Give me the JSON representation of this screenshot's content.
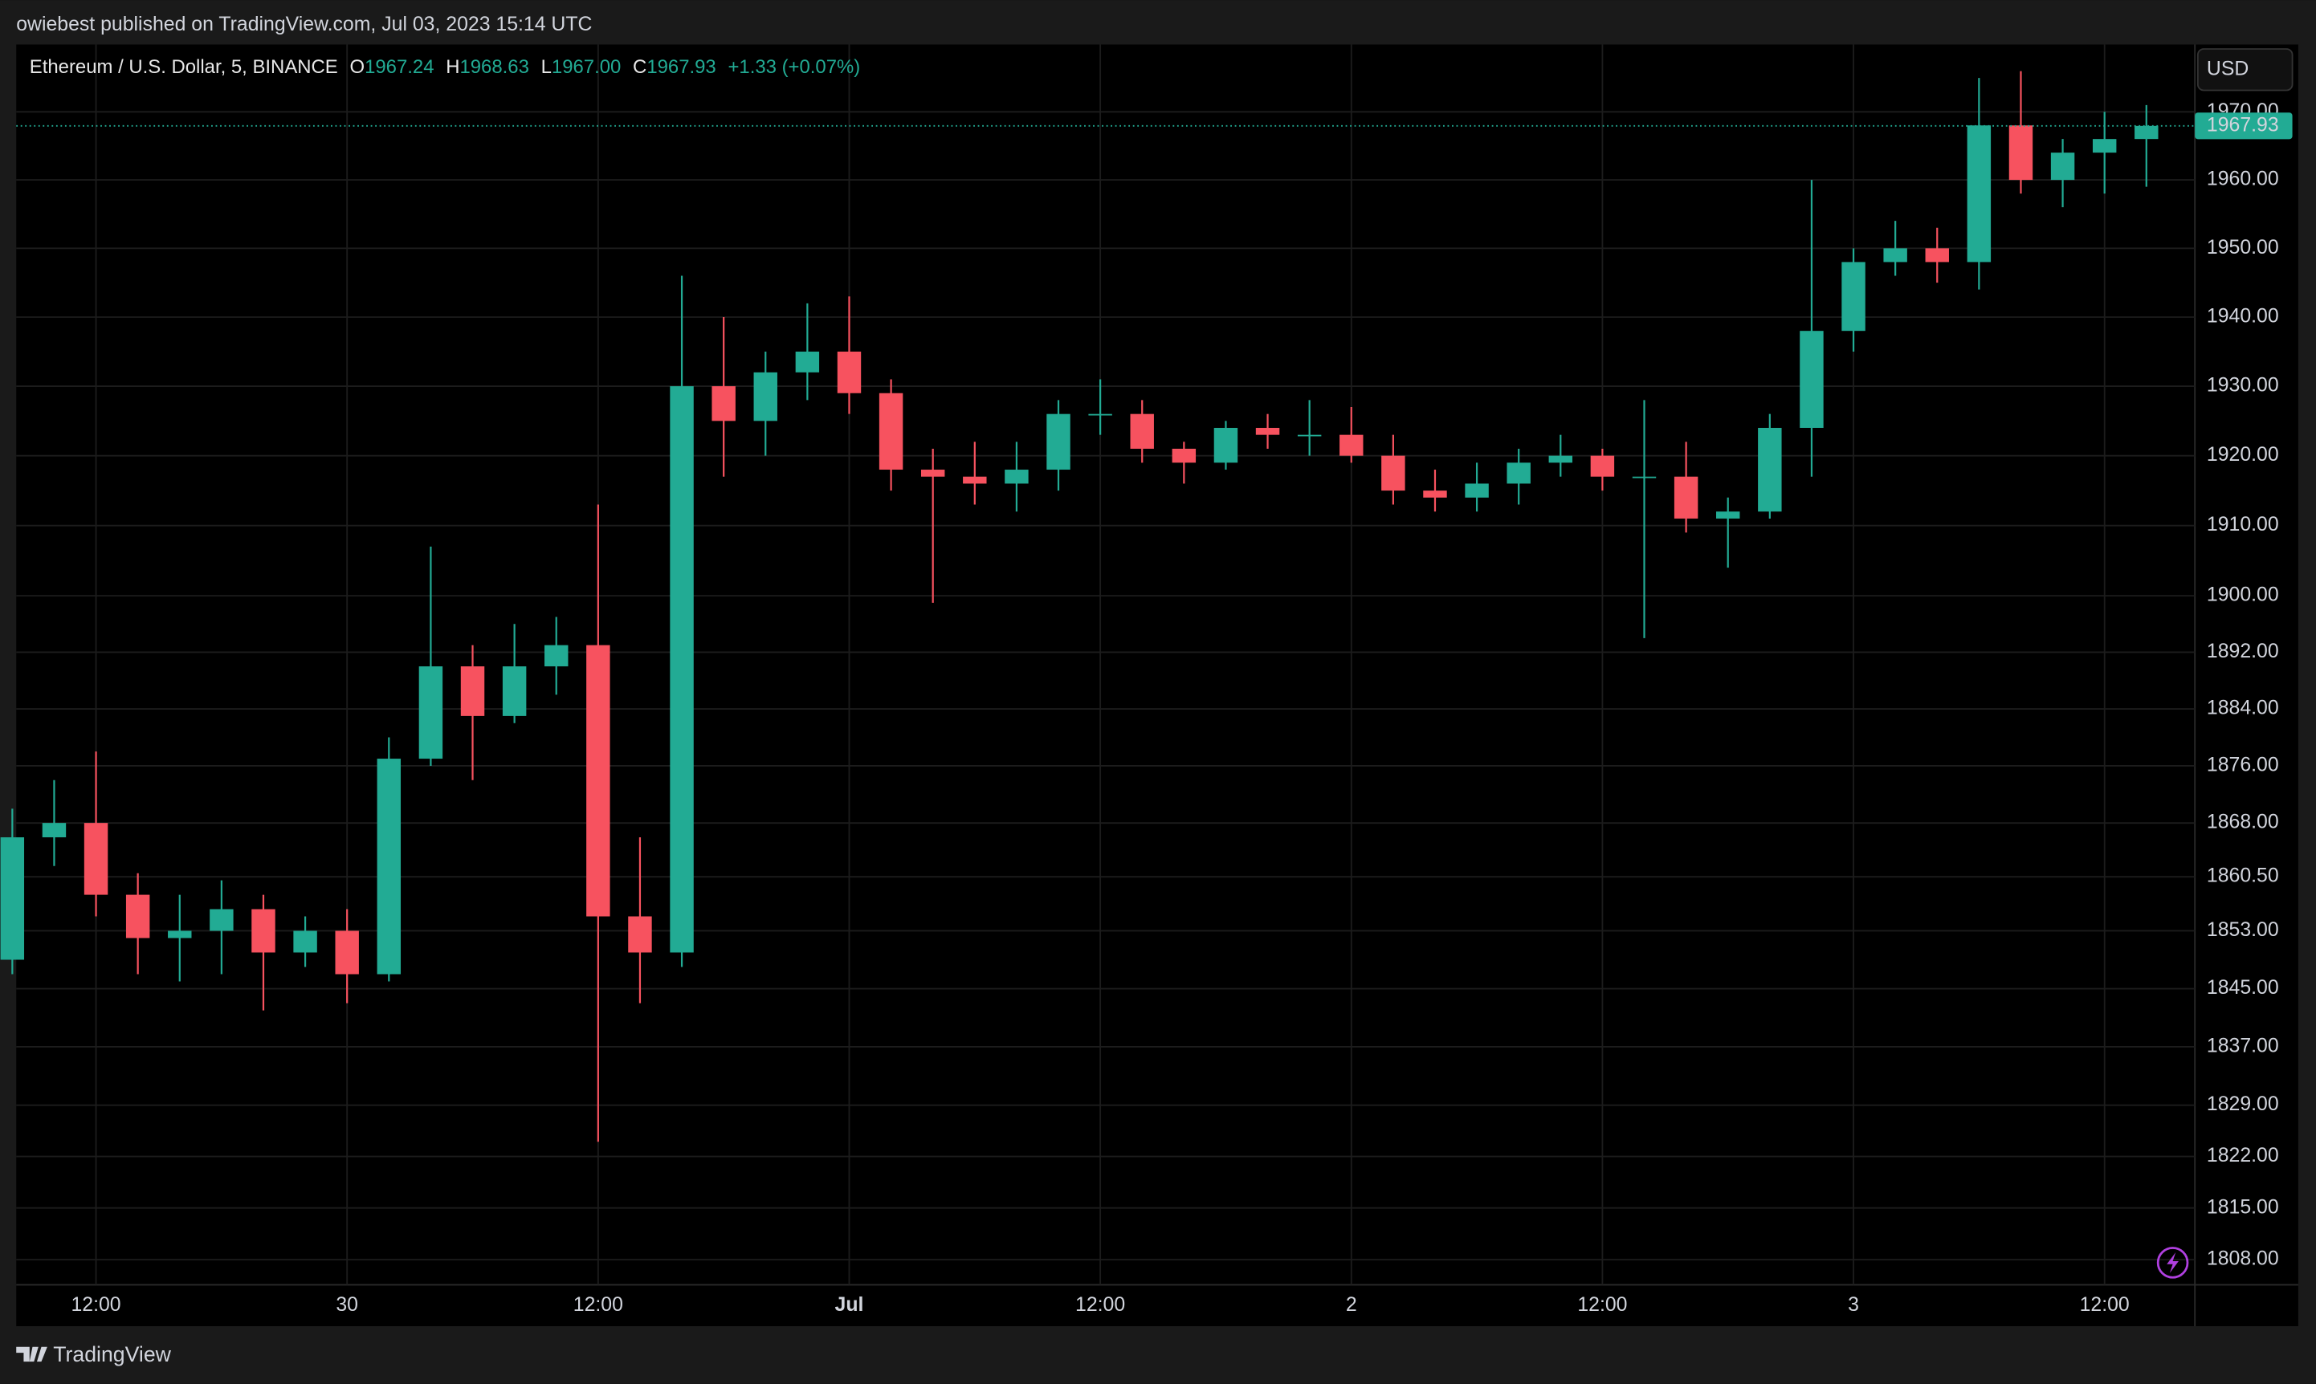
{
  "header": {
    "publisher": "owiebest published on TradingView.com, Jul 03, 2023 15:14 UTC"
  },
  "footer": {
    "brand": "TradingView"
  },
  "chart_data": {
    "type": "candlestick",
    "symbol": "Ethereum / U.S. Dollar, 5, BINANCE",
    "ohlc_legend": {
      "open_label": "O",
      "open": "1967.24",
      "high_label": "H",
      "high": "1968.63",
      "low_label": "L",
      "low": "1967.00",
      "close_label": "C",
      "close": "1967.93",
      "change": "+1.33 (+0.07%)"
    },
    "currency": "USD",
    "last_price": 1967.93,
    "up_color": "#22ab94",
    "down_color": "#f7525f",
    "log": true,
    "grid": true,
    "categories": [
      null,
      null,
      "12:00",
      null,
      null,
      null,
      null,
      null,
      "30",
      null,
      null,
      null,
      null,
      null,
      "12:00",
      null,
      null,
      null,
      null,
      null,
      "Jul",
      null,
      null,
      null,
      null,
      null,
      "12:00",
      null,
      null,
      null,
      null,
      null,
      "2",
      null,
      null,
      null,
      null,
      null,
      "12:00",
      null,
      null,
      null,
      null,
      null,
      "3",
      null,
      null,
      null,
      null,
      null,
      "12:00",
      null
    ],
    "open": [
      1849,
      1866,
      1868,
      1858,
      1852,
      1853,
      1856,
      1850,
      1853,
      1847,
      1877,
      1890,
      1883,
      1890,
      1893,
      1855,
      1850,
      1930,
      1925,
      1932,
      1935,
      1929,
      1918,
      1917,
      1916,
      1918,
      1926,
      1926,
      1921,
      1919,
      1924,
      1923,
      1923,
      1920,
      1915,
      1914,
      1916,
      1919,
      1920,
      1917,
      1917,
      1911,
      1912,
      1924,
      1938,
      1948,
      1950,
      1948,
      1968,
      1960,
      1964,
      1966
    ],
    "high": [
      1870,
      1874,
      1878,
      1861,
      1858,
      1860,
      1858,
      1855,
      1856,
      1880,
      1907,
      1893,
      1896,
      1897,
      1913,
      1866,
      1946,
      1940,
      1935,
      1942,
      1943,
      1931,
      1921,
      1922,
      1922,
      1928,
      1931,
      1928,
      1922,
      1925,
      1926,
      1928,
      1927,
      1923,
      1918,
      1919,
      1921,
      1923,
      1921,
      1928,
      1922,
      1914,
      1926,
      1960,
      1950,
      1954,
      1953,
      1975,
      1976,
      1966,
      1970,
      1971
    ],
    "low": [
      1847,
      1862,
      1855,
      1847,
      1846,
      1847,
      1842,
      1848,
      1843,
      1846,
      1876,
      1874,
      1882,
      1886,
      1824,
      1843,
      1848,
      1917,
      1920,
      1928,
      1926,
      1915,
      1899,
      1913,
      1912,
      1915,
      1923,
      1919,
      1916,
      1918,
      1921,
      1920,
      1919,
      1913,
      1912,
      1912,
      1913,
      1917,
      1915,
      1894,
      1909,
      1904,
      1911,
      1917,
      1935,
      1946,
      1945,
      1944,
      1958,
      1956,
      1958,
      1959
    ],
    "close": [
      1866,
      1868,
      1858,
      1852,
      1853,
      1856,
      1850,
      1853,
      1847,
      1877,
      1890,
      1883,
      1890,
      1893,
      1855,
      1850,
      1930,
      1925,
      1932,
      1935,
      1929,
      1918,
      1917,
      1916,
      1918,
      1926,
      1926,
      1921,
      1919,
      1924,
      1923,
      1923,
      1920,
      1915,
      1914,
      1916,
      1919,
      1920,
      1917,
      1917,
      1911,
      1912,
      1924,
      1938,
      1948,
      1950,
      1948,
      1968,
      1960,
      1964,
      1966,
      1967.93
    ],
    "ylim": [
      1804.6,
      1979.5
    ],
    "yticks": [
      {
        "value": 1808,
        "label": "1808.00"
      },
      {
        "value": 1815,
        "label": "1815.00"
      },
      {
        "value": 1822,
        "label": "1822.00"
      },
      {
        "value": 1829,
        "label": "1829.00"
      },
      {
        "value": 1837,
        "label": "1837.00"
      },
      {
        "value": 1845,
        "label": "1845.00"
      },
      {
        "value": 1853,
        "label": "1853.00"
      },
      {
        "value": 1860.5,
        "label": "1860.50"
      },
      {
        "value": 1868,
        "label": "1868.00"
      },
      {
        "value": 1876,
        "label": "1876.00"
      },
      {
        "value": 1884,
        "label": "1884.00"
      },
      {
        "value": 1892,
        "label": "1892.00"
      },
      {
        "value": 1900,
        "label": "1900.00"
      },
      {
        "value": 1910,
        "label": "1910.00"
      },
      {
        "value": 1920,
        "label": "1920.00"
      },
      {
        "value": 1930,
        "label": "1930.00"
      },
      {
        "value": 1940,
        "label": "1940.00"
      },
      {
        "value": 1950,
        "label": "1950.00"
      },
      {
        "value": 1960,
        "label": "1960.00"
      },
      {
        "value": 1970,
        "label": "1970.00"
      }
    ]
  }
}
